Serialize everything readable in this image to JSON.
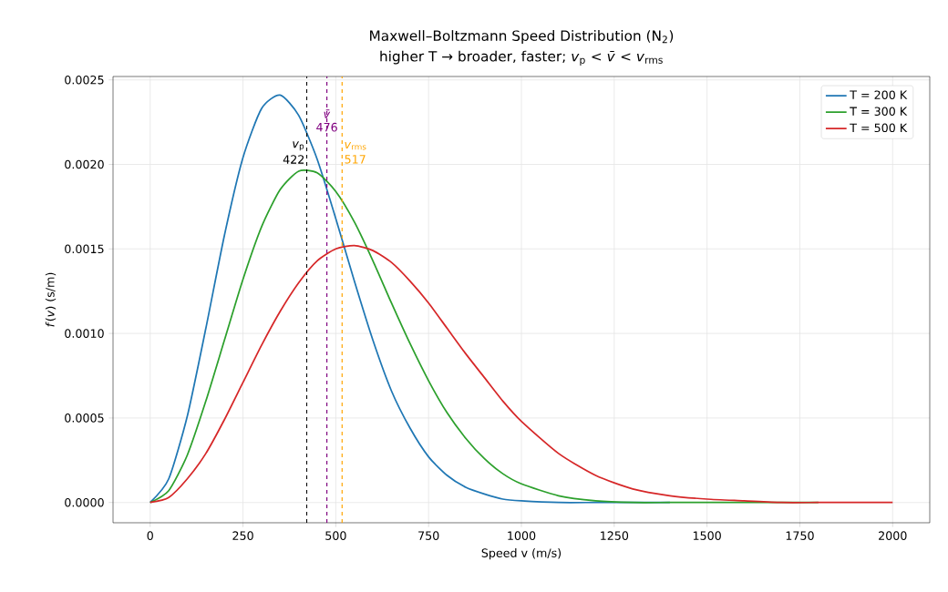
{
  "chart_data": {
    "type": "line",
    "title": "Maxwell–Boltzmann Speed Distribution (N$_{2}$)",
    "subtitle": "higher T → broader, faster; *v*$_{p}$ < *v̄* < *v*$_{rms}$",
    "xlabel": "Speed v (m/s)",
    "ylabel": "*f*(*v*)  (s/m)",
    "x": [
      0,
      50,
      100,
      150,
      200,
      250,
      300,
      350,
      400,
      450,
      500,
      550,
      600,
      650,
      700,
      750,
      800,
      850,
      900,
      950,
      1000,
      1100,
      1200,
      1300,
      1400,
      1500,
      1600,
      1700,
      1800,
      1900,
      2000
    ],
    "series": [
      {
        "name": "T = 200 K",
        "color": "#1f77b4",
        "x": [
          0,
          50,
          100,
          150,
          200,
          250,
          300,
          350,
          400,
          450,
          500,
          550,
          600,
          650,
          700,
          750,
          800,
          850,
          900,
          950,
          1000,
          1100,
          1200,
          1300,
          1400
        ],
        "values": [
          0,
          0.00014,
          0.00051,
          0.00103,
          0.00158,
          0.00204,
          0.00233,
          0.00241,
          0.00229,
          0.00203,
          0.00168,
          0.00131,
          0.00096,
          0.00066,
          0.00044,
          0.00027,
          0.00016,
          9e-05,
          5e-05,
          2e-05,
          1e-05,
          0,
          0,
          0,
          0
        ]
      },
      {
        "name": "T = 300 K",
        "color": "#2ca02c",
        "x": [
          0,
          50,
          100,
          150,
          200,
          250,
          300,
          350,
          400,
          450,
          500,
          550,
          600,
          650,
          700,
          750,
          800,
          850,
          900,
          950,
          1000,
          1100,
          1200,
          1300,
          1400,
          1500,
          1600,
          1700,
          1800
        ],
        "values": [
          0,
          7e-05,
          0.00028,
          0.0006,
          0.00096,
          0.00132,
          0.00163,
          0.00185,
          0.00196,
          0.00195,
          0.00184,
          0.00166,
          0.00143,
          0.00118,
          0.00094,
          0.00072,
          0.00053,
          0.00038,
          0.00026,
          0.00017,
          0.00011,
          4e-05,
          1e-05,
          0,
          0,
          0,
          0,
          0,
          0
        ]
      },
      {
        "name": "T = 500 K",
        "color": "#d62728",
        "values": [
          0,
          3e-05,
          0.00014,
          0.00029,
          0.00049,
          0.00071,
          0.00093,
          0.00113,
          0.0013,
          0.00143,
          0.0015,
          0.00152,
          0.00149,
          0.00142,
          0.00131,
          0.00118,
          0.00103,
          0.00088,
          0.00074,
          0.0006,
          0.00048,
          0.00029,
          0.00016,
          8e-05,
          4e-05,
          2e-05,
          1e-05,
          0,
          0,
          0,
          0
        ]
      }
    ],
    "xlim": [
      -100,
      2100
    ],
    "ylim": [
      -0.00012,
      0.00252
    ],
    "xticks": [
      0,
      250,
      500,
      750,
      1000,
      1250,
      1500,
      1750,
      2000
    ],
    "yticks": [
      {
        "value": 0,
        "label": "0.0000"
      },
      {
        "value": 0.0005,
        "label": "0.0005"
      },
      {
        "value": 0.001,
        "label": "0.0010"
      },
      {
        "value": 0.0015,
        "label": "0.0015"
      },
      {
        "value": 0.002,
        "label": "0.0020"
      },
      {
        "value": 0.0025,
        "label": "0.0025"
      }
    ],
    "ref_lines": [
      {
        "axis": "x",
        "value": 422,
        "label": "*v*$_{p}$",
        "color": "#000000",
        "line_style": "dashed"
      },
      {
        "axis": "x",
        "value": 476,
        "label": "*v̄*",
        "color": "#800080",
        "line_style": "dashed"
      },
      {
        "axis": "x",
        "value": 517,
        "label": "*v*$_{rms}$",
        "color": "#ffa500",
        "line_style": "dashed"
      }
    ],
    "annotations": [
      {
        "text": "422",
        "x": 422,
        "y": 0.00203
      },
      {
        "text": "476",
        "x": 476,
        "y": 0.00222
      },
      {
        "text": "517",
        "x": 517,
        "y": 0.00203
      }
    ],
    "grid": true,
    "legend": "top right",
    "line_style": "solid",
    "marker": "none"
  }
}
